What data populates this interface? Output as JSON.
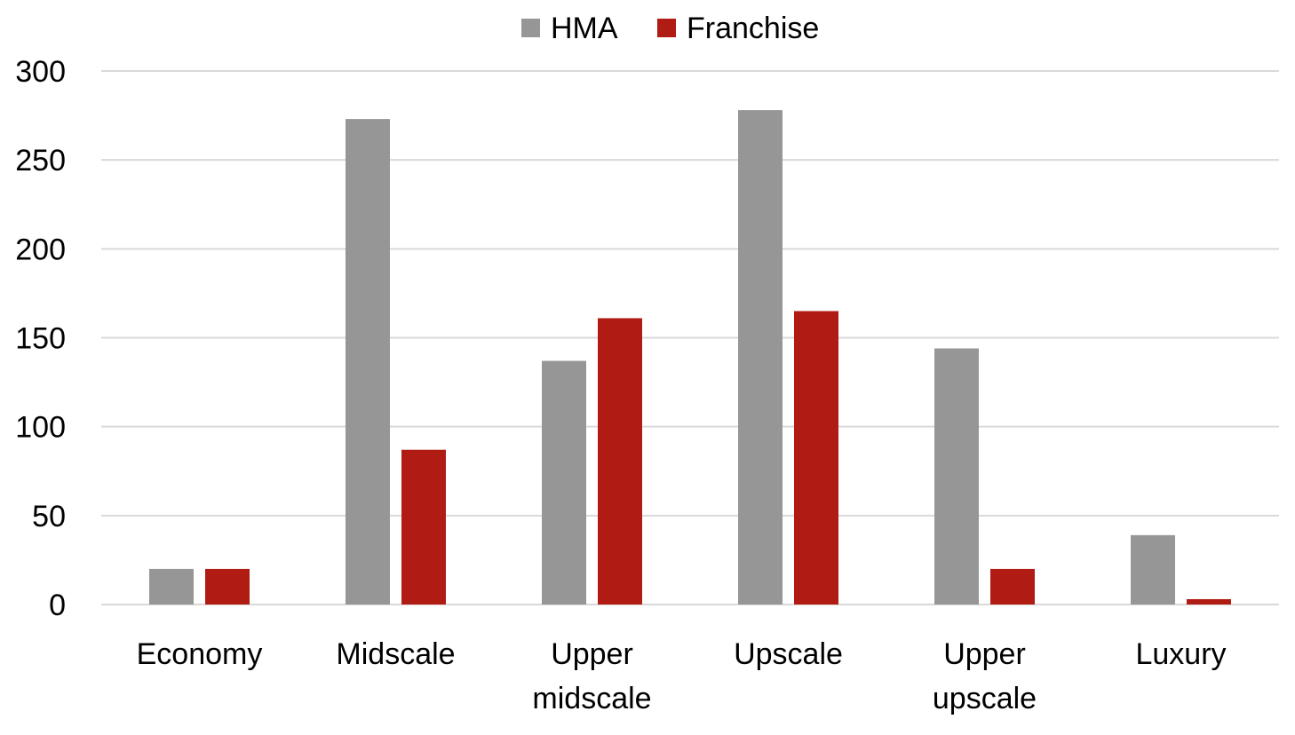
{
  "chart_data": {
    "type": "bar",
    "categories": [
      [
        "Economy"
      ],
      [
        "Midscale"
      ],
      [
        "Upper",
        "midscale"
      ],
      [
        "Upscale"
      ],
      [
        "Upper",
        "upscale"
      ],
      [
        "Luxury"
      ]
    ],
    "series": [
      {
        "name": "HMA",
        "color": "#969696",
        "values": [
          20,
          273,
          137,
          278,
          144,
          39
        ]
      },
      {
        "name": "Franchise",
        "color": "#b01c13",
        "values": [
          20,
          87,
          161,
          165,
          20,
          3
        ]
      }
    ],
    "ylim": [
      0,
      300
    ],
    "yticks": [
      0,
      50,
      100,
      150,
      200,
      250,
      300
    ],
    "grid": true,
    "legend_position": "top-center",
    "title": "",
    "xlabel": "",
    "ylabel": ""
  }
}
